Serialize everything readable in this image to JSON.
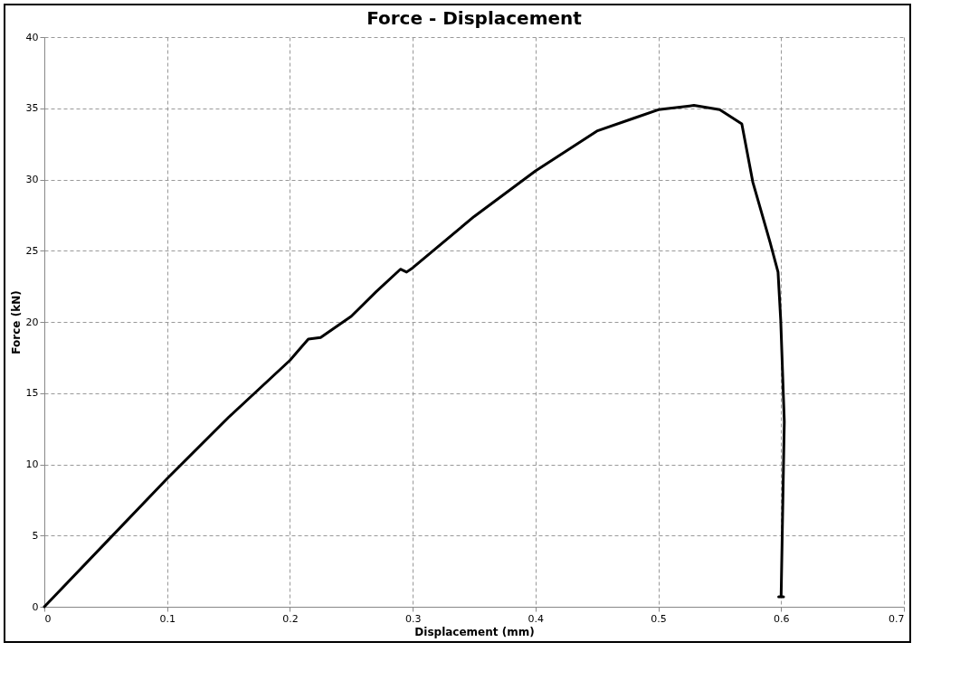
{
  "chart_data": {
    "type": "line",
    "title": "Force - Displacement",
    "xlabel": "Displacement (mm)",
    "ylabel": "Force (kN)",
    "x": [
      0,
      0.05,
      0.1,
      0.15,
      0.2,
      0.21,
      0.215,
      0.225,
      0.25,
      0.27,
      0.29,
      0.295,
      0.3,
      0.35,
      0.4,
      0.45,
      0.48,
      0.5,
      0.529,
      0.55,
      0.568,
      0.577,
      0.591,
      0.5975,
      0.5997,
      0.6026,
      0.6,
      0.598,
      0.602
    ],
    "series": [
      {
        "color": "#000000",
        "values": [
          0,
          4.5,
          9.0,
          13.3,
          17.3,
          18.3,
          18.8,
          18.9,
          20.4,
          22.1,
          23.7,
          23.5,
          23.8,
          27.4,
          30.6,
          33.4,
          34.3,
          34.9,
          35.2,
          34.9,
          33.9,
          29.8,
          25.6,
          23.5,
          20.1,
          13,
          0.7,
          0.7,
          0.7
        ]
      }
    ],
    "xlim": [
      0,
      0.7
    ],
    "xticks": [
      0,
      0.1,
      0.2,
      0.3,
      0.4,
      0.5,
      0.6,
      0.7
    ],
    "ylim": [
      0,
      40
    ],
    "yticks": [
      0,
      5,
      10,
      15,
      20,
      25,
      30,
      35,
      40
    ],
    "grid": true,
    "marker": "none",
    "line_style": "solid"
  }
}
